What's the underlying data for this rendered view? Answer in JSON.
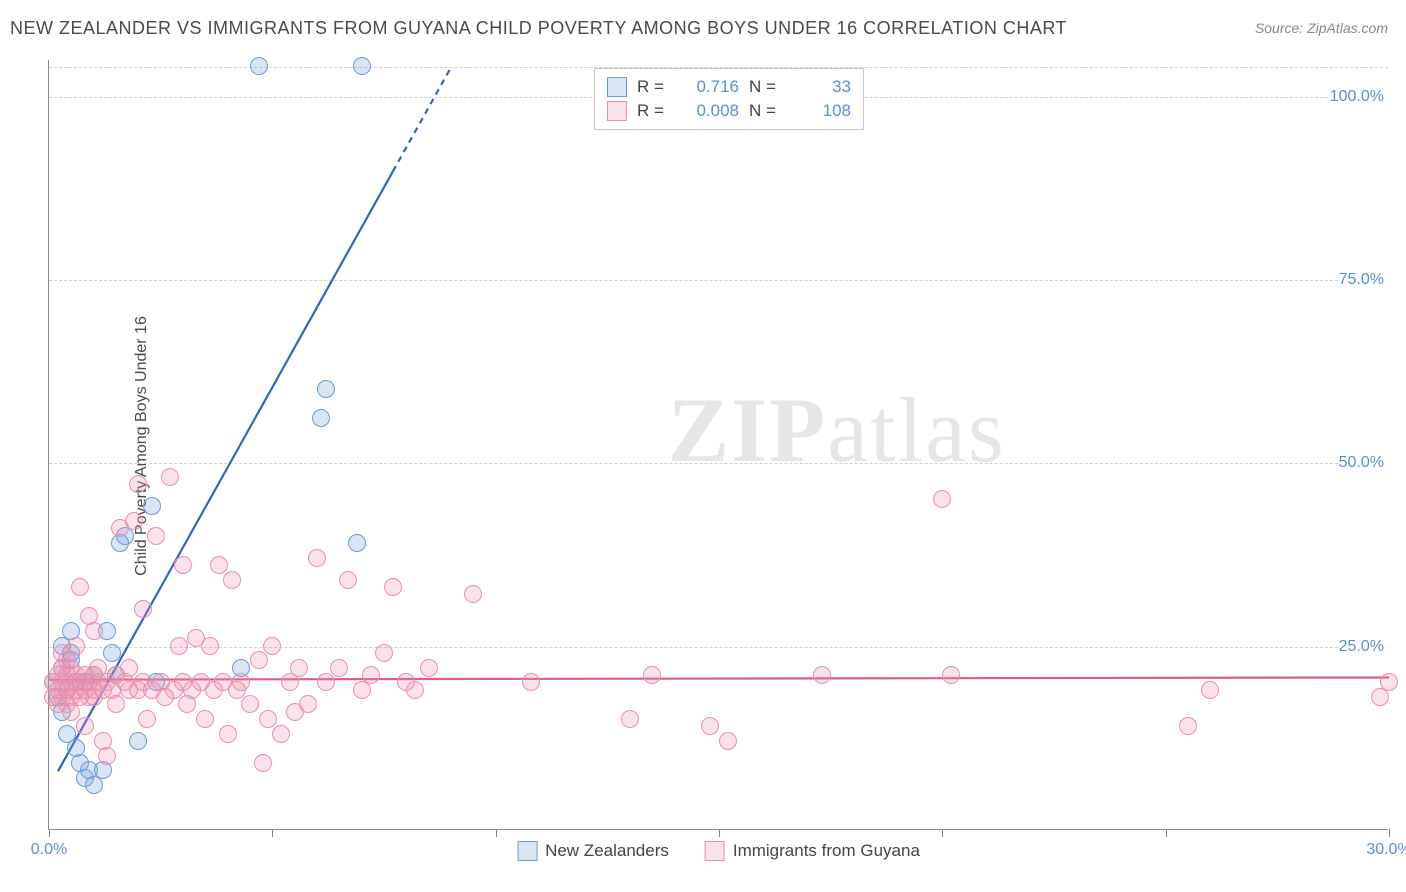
{
  "title": "NEW ZEALANDER VS IMMIGRANTS FROM GUYANA CHILD POVERTY AMONG BOYS UNDER 16 CORRELATION CHART",
  "source": "Source: ZipAtlas.com",
  "watermark_bold": "ZIP",
  "watermark_rest": "atlas",
  "y_axis_title": "Child Poverty Among Boys Under 16",
  "chart": {
    "type": "scatter",
    "xlim": [
      0,
      30
    ],
    "ylim": [
      0,
      105
    ],
    "x_ticks": [
      0,
      5,
      10,
      15,
      20,
      25,
      30
    ],
    "x_tick_labels": {
      "0": "0.0%",
      "30": "30.0%"
    },
    "y_gridlines": [
      25,
      50,
      75,
      100
    ],
    "y_tick_labels": {
      "25": "25.0%",
      "50": "50.0%",
      "75": "75.0%",
      "100": "100.0%"
    },
    "background_color": "#ffffff",
    "grid_color": "#d0d0d0",
    "axis_color": "#888888",
    "point_radius": 9,
    "point_stroke_width": 1.5,
    "series": [
      {
        "name": "New Zealanders",
        "fill_color": "rgba(120,160,220,0.28)",
        "stroke_color": "#6a9bd8",
        "r_value": "0.716",
        "n_value": "33",
        "trend": {
          "x1": 0.2,
          "y1": 8,
          "x2": 9.0,
          "y2": 104,
          "dashed_from_x": 7.7,
          "color": "#2f66c4",
          "width": 2.2
        },
        "points": [
          [
            0.1,
            20
          ],
          [
            0.2,
            18
          ],
          [
            0.3,
            16
          ],
          [
            0.3,
            22
          ],
          [
            0.4,
            19
          ],
          [
            0.4,
            13
          ],
          [
            0.5,
            23
          ],
          [
            0.5,
            27
          ],
          [
            0.6,
            20
          ],
          [
            0.6,
            11
          ],
          [
            0.7,
            9
          ],
          [
            0.8,
            7
          ],
          [
            0.8,
            20
          ],
          [
            0.9,
            8
          ],
          [
            1.0,
            6
          ],
          [
            1.0,
            21
          ],
          [
            1.2,
            8
          ],
          [
            1.3,
            27
          ],
          [
            1.4,
            24
          ],
          [
            1.5,
            21
          ],
          [
            1.6,
            39
          ],
          [
            1.7,
            40
          ],
          [
            2.0,
            12
          ],
          [
            2.3,
            44
          ],
          [
            2.4,
            20
          ],
          [
            4.3,
            22
          ],
          [
            4.7,
            104
          ],
          [
            6.1,
            56
          ],
          [
            6.2,
            60
          ],
          [
            7.0,
            104
          ],
          [
            6.9,
            39
          ],
          [
            0.3,
            25
          ],
          [
            0.5,
            24
          ]
        ]
      },
      {
        "name": "Immigrants from Guyana",
        "fill_color": "rgba(240,140,170,0.26)",
        "stroke_color": "#e98fb0",
        "r_value": "0.008",
        "n_value": "108",
        "trend": {
          "x1": 0,
          "y1": 20.5,
          "x2": 30,
          "y2": 20.8,
          "color": "#e05a8c",
          "width": 2.2
        },
        "points": [
          [
            0.1,
            18
          ],
          [
            0.1,
            20
          ],
          [
            0.2,
            19
          ],
          [
            0.2,
            21
          ],
          [
            0.2,
            17
          ],
          [
            0.3,
            20
          ],
          [
            0.3,
            22
          ],
          [
            0.3,
            18
          ],
          [
            0.3,
            24
          ],
          [
            0.4,
            19
          ],
          [
            0.4,
            21
          ],
          [
            0.4,
            17
          ],
          [
            0.4,
            23
          ],
          [
            0.5,
            20
          ],
          [
            0.5,
            18
          ],
          [
            0.5,
            22
          ],
          [
            0.5,
            16
          ],
          [
            0.6,
            19
          ],
          [
            0.6,
            21
          ],
          [
            0.6,
            25
          ],
          [
            0.7,
            20
          ],
          [
            0.7,
            18
          ],
          [
            0.7,
            33
          ],
          [
            0.8,
            19
          ],
          [
            0.8,
            21
          ],
          [
            0.8,
            14
          ],
          [
            0.9,
            20
          ],
          [
            0.9,
            18
          ],
          [
            0.9,
            29
          ],
          [
            1.0,
            19
          ],
          [
            1.0,
            18
          ],
          [
            1.0,
            21
          ],
          [
            1.0,
            27
          ],
          [
            1.1,
            20
          ],
          [
            1.1,
            22
          ],
          [
            1.2,
            19
          ],
          [
            1.2,
            12
          ],
          [
            1.3,
            20
          ],
          [
            1.3,
            10
          ],
          [
            1.4,
            19
          ],
          [
            1.5,
            17
          ],
          [
            1.5,
            21
          ],
          [
            1.6,
            41
          ],
          [
            1.7,
            20
          ],
          [
            1.8,
            19
          ],
          [
            1.8,
            22
          ],
          [
            1.9,
            42
          ],
          [
            2.0,
            47
          ],
          [
            2.0,
            19
          ],
          [
            2.1,
            20
          ],
          [
            2.1,
            30
          ],
          [
            2.2,
            15
          ],
          [
            2.3,
            19
          ],
          [
            2.4,
            40
          ],
          [
            2.5,
            20
          ],
          [
            2.6,
            18
          ],
          [
            2.7,
            48
          ],
          [
            2.8,
            19
          ],
          [
            2.9,
            25
          ],
          [
            3.0,
            36
          ],
          [
            3.0,
            20
          ],
          [
            3.1,
            17
          ],
          [
            3.2,
            19
          ],
          [
            3.3,
            26
          ],
          [
            3.4,
            20
          ],
          [
            3.5,
            15
          ],
          [
            3.6,
            25
          ],
          [
            3.7,
            19
          ],
          [
            3.8,
            36
          ],
          [
            3.9,
            20
          ],
          [
            4.0,
            13
          ],
          [
            4.1,
            34
          ],
          [
            4.2,
            19
          ],
          [
            4.3,
            20
          ],
          [
            4.5,
            17
          ],
          [
            4.7,
            23
          ],
          [
            4.8,
            9
          ],
          [
            4.9,
            15
          ],
          [
            5.0,
            25
          ],
          [
            5.2,
            13
          ],
          [
            5.4,
            20
          ],
          [
            5.5,
            16
          ],
          [
            5.6,
            22
          ],
          [
            5.8,
            17
          ],
          [
            6.0,
            37
          ],
          [
            6.2,
            20
          ],
          [
            6.5,
            22
          ],
          [
            6.7,
            34
          ],
          [
            7.0,
            19
          ],
          [
            7.2,
            21
          ],
          [
            7.5,
            24
          ],
          [
            7.7,
            33
          ],
          [
            8.0,
            20
          ],
          [
            8.2,
            19
          ],
          [
            8.5,
            22
          ],
          [
            9.5,
            32
          ],
          [
            10.8,
            20
          ],
          [
            13.0,
            15
          ],
          [
            13.5,
            21
          ],
          [
            14.8,
            14
          ],
          [
            15.2,
            12
          ],
          [
            17.3,
            21
          ],
          [
            20.0,
            45
          ],
          [
            20.2,
            21
          ],
          [
            25.5,
            14
          ],
          [
            26.0,
            19
          ],
          [
            29.8,
            18
          ],
          [
            30.0,
            20
          ]
        ]
      }
    ]
  },
  "legend_stats": {
    "r_label": "R =",
    "n_label": "N ="
  }
}
